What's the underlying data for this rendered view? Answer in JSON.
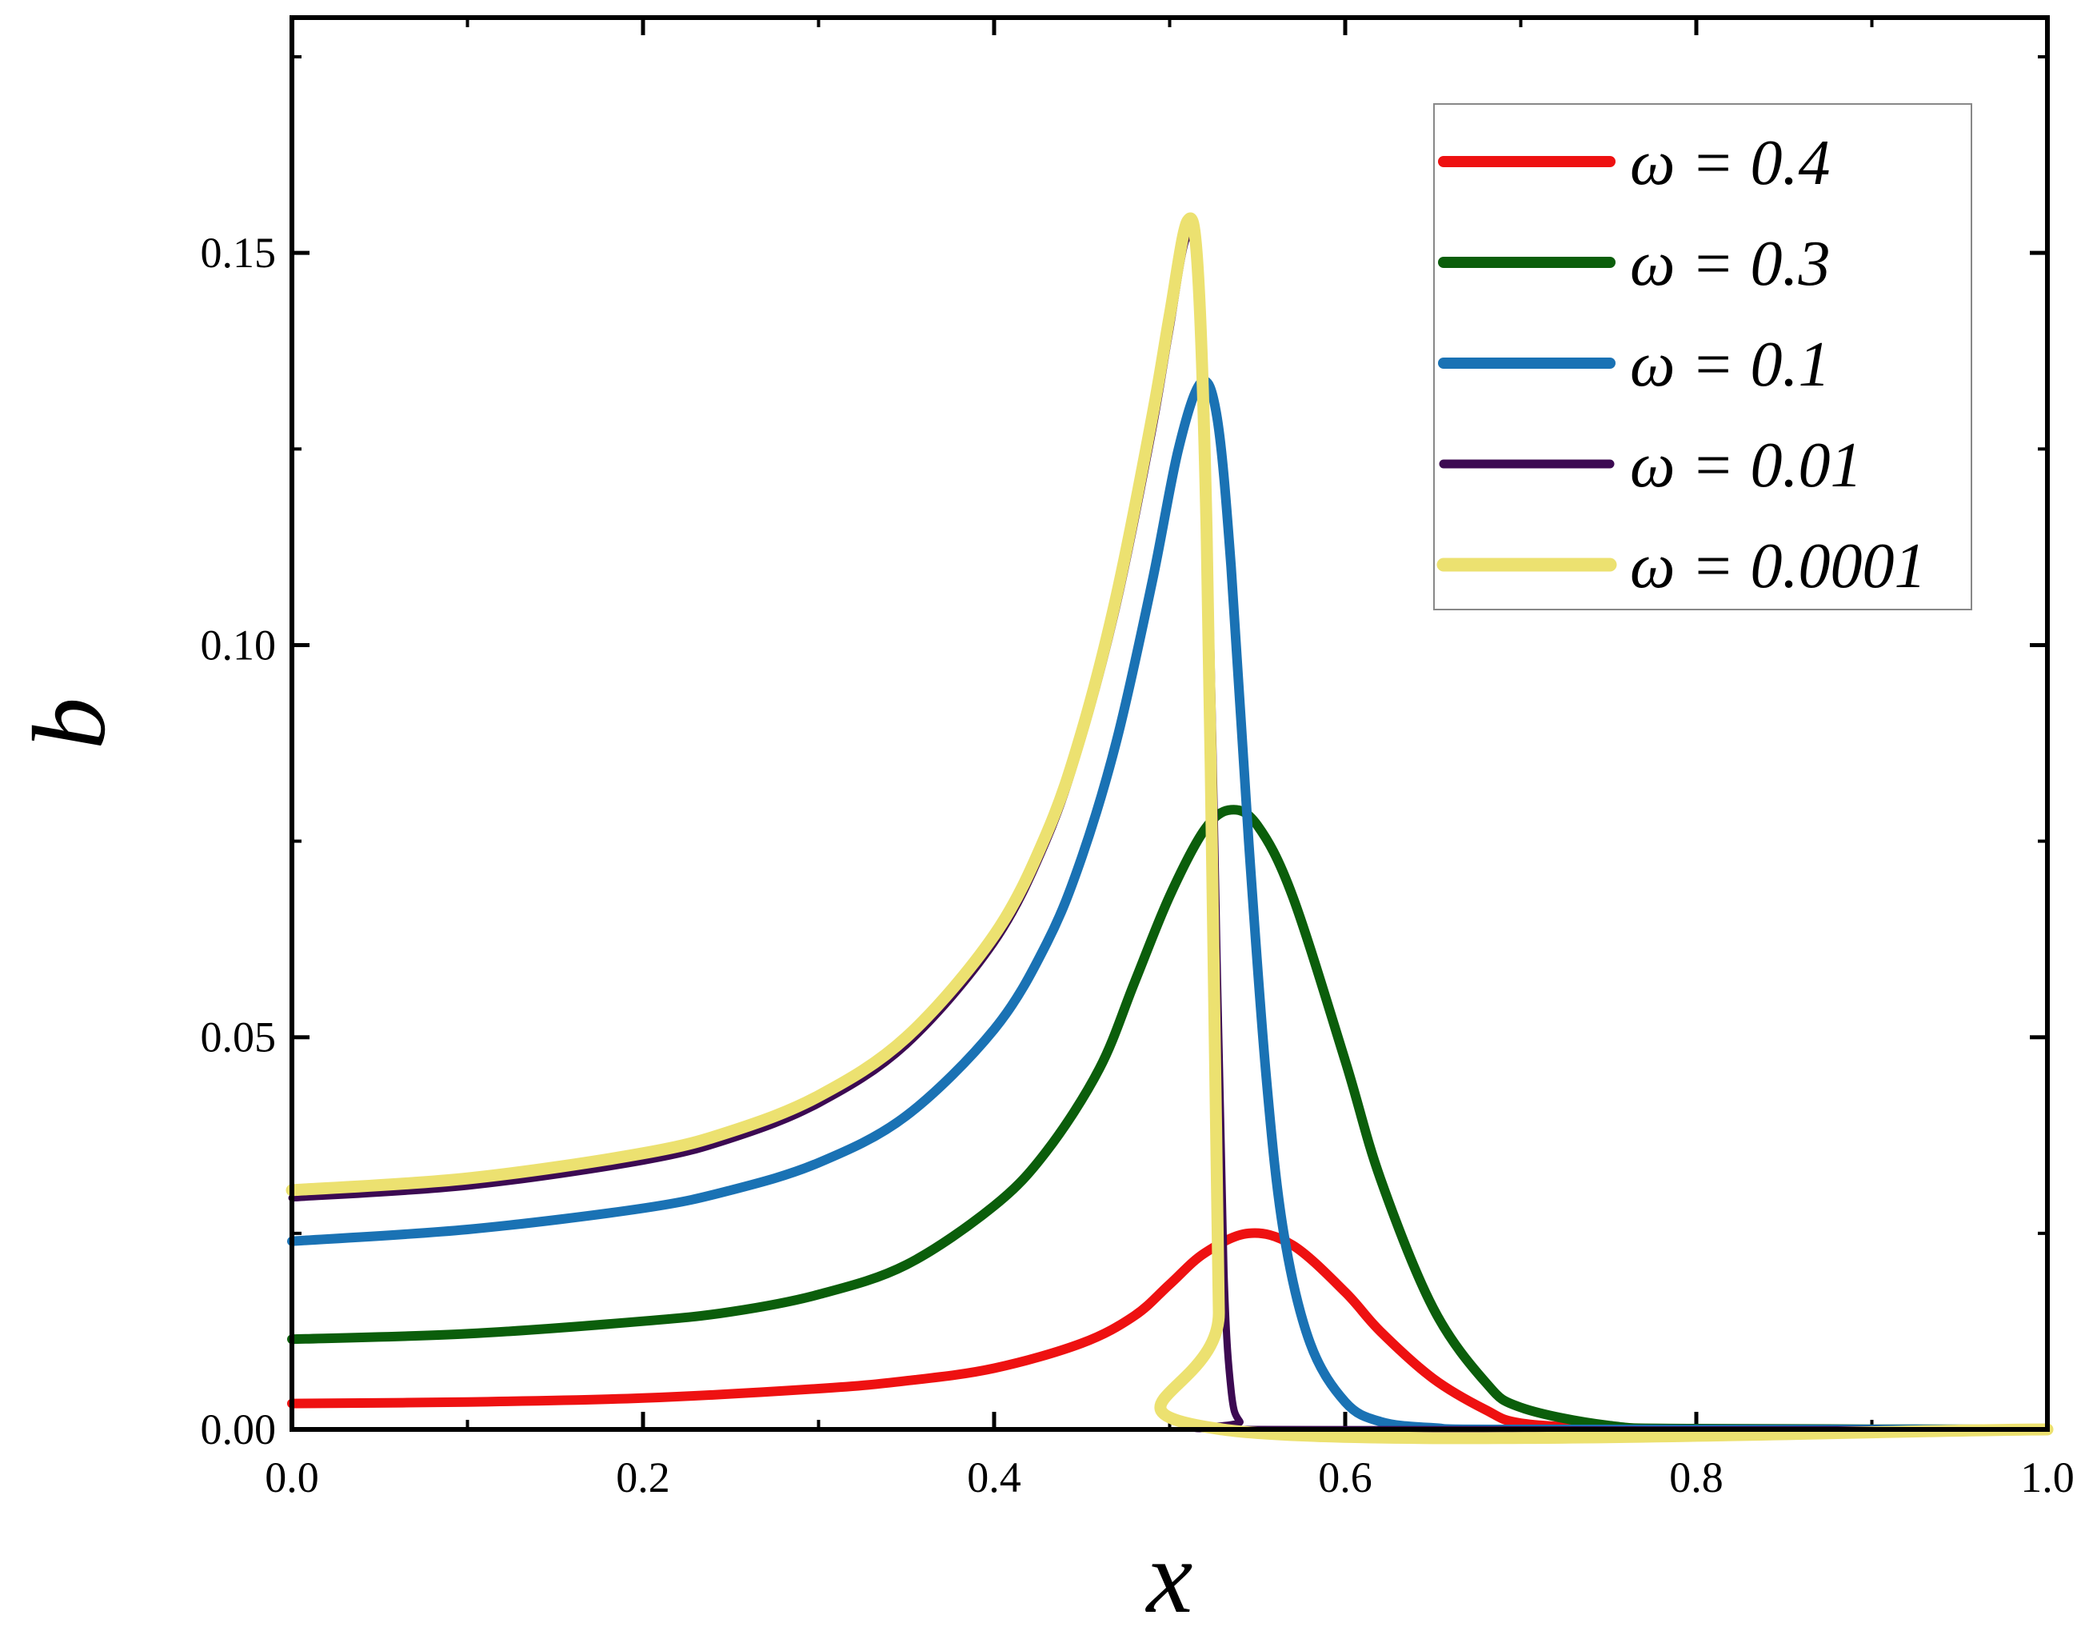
{
  "chart_data": {
    "type": "line",
    "xlabel": "x",
    "ylabel": "b",
    "xlim": [
      0,
      1
    ],
    "ylim": [
      0,
      0.18
    ],
    "xticks": [
      0.0,
      0.2,
      0.4,
      0.6,
      0.8,
      1.0
    ],
    "xtick_labels": [
      "0.0",
      "0.2",
      "0.4",
      "0.6",
      "0.8",
      "1.0"
    ],
    "yticks": [
      0.0,
      0.05,
      0.1,
      0.15
    ],
    "ytick_labels": [
      "0.00",
      "0.05",
      "0.10",
      "0.15"
    ],
    "legend_position": "top-right",
    "grid": false,
    "series": [
      {
        "name": "ω = 0.4",
        "color": "#ee1111",
        "points": [
          [
            0.0,
            0.0033
          ],
          [
            0.1,
            0.0035
          ],
          [
            0.2,
            0.004
          ],
          [
            0.3,
            0.0052
          ],
          [
            0.35,
            0.0062
          ],
          [
            0.4,
            0.0078
          ],
          [
            0.45,
            0.011
          ],
          [
            0.48,
            0.0145
          ],
          [
            0.5,
            0.0185
          ],
          [
            0.52,
            0.0225
          ],
          [
            0.545,
            0.025
          ],
          [
            0.57,
            0.0235
          ],
          [
            0.6,
            0.0175
          ],
          [
            0.62,
            0.0125
          ],
          [
            0.65,
            0.0065
          ],
          [
            0.68,
            0.0025
          ],
          [
            0.7,
            0.0008
          ],
          [
            0.75,
            0.0001
          ],
          [
            0.8,
            0.0
          ],
          [
            1.0,
            0.0
          ]
        ]
      },
      {
        "name": "ω = 0.3",
        "color": "#0b5e0b",
        "points": [
          [
            0.0,
            0.0115
          ],
          [
            0.1,
            0.0122
          ],
          [
            0.2,
            0.0138
          ],
          [
            0.25,
            0.015
          ],
          [
            0.3,
            0.0172
          ],
          [
            0.35,
            0.021
          ],
          [
            0.4,
            0.0285
          ],
          [
            0.43,
            0.0355
          ],
          [
            0.46,
            0.046
          ],
          [
            0.48,
            0.057
          ],
          [
            0.5,
            0.068
          ],
          [
            0.52,
            0.0765
          ],
          [
            0.535,
            0.079
          ],
          [
            0.55,
            0.077
          ],
          [
            0.57,
            0.068
          ],
          [
            0.6,
            0.047
          ],
          [
            0.62,
            0.032
          ],
          [
            0.65,
            0.0155
          ],
          [
            0.68,
            0.006
          ],
          [
            0.7,
            0.0028
          ],
          [
            0.75,
            0.0005
          ],
          [
            0.8,
            0.0001
          ],
          [
            1.0,
            0.0
          ]
        ]
      },
      {
        "name": "ω = 0.1",
        "color": "#1a72b4",
        "points": [
          [
            0.0,
            0.024
          ],
          [
            0.1,
            0.0255
          ],
          [
            0.2,
            0.0282
          ],
          [
            0.25,
            0.0305
          ],
          [
            0.3,
            0.034
          ],
          [
            0.35,
            0.04
          ],
          [
            0.4,
            0.051
          ],
          [
            0.43,
            0.062
          ],
          [
            0.45,
            0.073
          ],
          [
            0.47,
            0.088
          ],
          [
            0.49,
            0.108
          ],
          [
            0.505,
            0.125
          ],
          [
            0.518,
            0.1335
          ],
          [
            0.527,
            0.129
          ],
          [
            0.535,
            0.11
          ],
          [
            0.545,
            0.075
          ],
          [
            0.555,
            0.045
          ],
          [
            0.565,
            0.025
          ],
          [
            0.58,
            0.011
          ],
          [
            0.6,
            0.0035
          ],
          [
            0.62,
            0.001
          ],
          [
            0.65,
            0.0002
          ],
          [
            0.7,
            0.0
          ],
          [
            1.0,
            0.0
          ]
        ]
      },
      {
        "name": "ω = 0.01",
        "color": "#3c0a52",
        "points": [
          [
            0.0,
            0.0295
          ],
          [
            0.1,
            0.031
          ],
          [
            0.2,
            0.0342
          ],
          [
            0.25,
            0.037
          ],
          [
            0.3,
            0.0415
          ],
          [
            0.35,
            0.049
          ],
          [
            0.4,
            0.062
          ],
          [
            0.43,
            0.075
          ],
          [
            0.45,
            0.088
          ],
          [
            0.47,
            0.105
          ],
          [
            0.49,
            0.127
          ],
          [
            0.5,
            0.14
          ],
          [
            0.51,
            0.152
          ],
          [
            0.517,
            0.145
          ],
          [
            0.522,
            0.115
          ],
          [
            0.527,
            0.06
          ],
          [
            0.531,
            0.02
          ],
          [
            0.535,
            0.005
          ],
          [
            0.54,
            0.001
          ],
          [
            0.55,
            0.0
          ],
          [
            1.0,
            0.0
          ]
        ]
      },
      {
        "name": "ω = 0.0001",
        "color": "#ece170",
        "points": [
          [
            0.0,
            0.0305
          ],
          [
            0.1,
            0.032
          ],
          [
            0.2,
            0.0352
          ],
          [
            0.25,
            0.038
          ],
          [
            0.3,
            0.0425
          ],
          [
            0.35,
            0.05
          ],
          [
            0.4,
            0.063
          ],
          [
            0.43,
            0.076
          ],
          [
            0.45,
            0.089
          ],
          [
            0.47,
            0.1065
          ],
          [
            0.49,
            0.129
          ],
          [
            0.5,
            0.142
          ],
          [
            0.51,
            0.154
          ],
          [
            0.516,
            0.148
          ],
          [
            0.521,
            0.115
          ],
          [
            0.525,
            0.06
          ],
          [
            0.528,
            0.015
          ],
          [
            0.53,
            0.0
          ],
          [
            1.0,
            0.0
          ]
        ]
      }
    ]
  }
}
